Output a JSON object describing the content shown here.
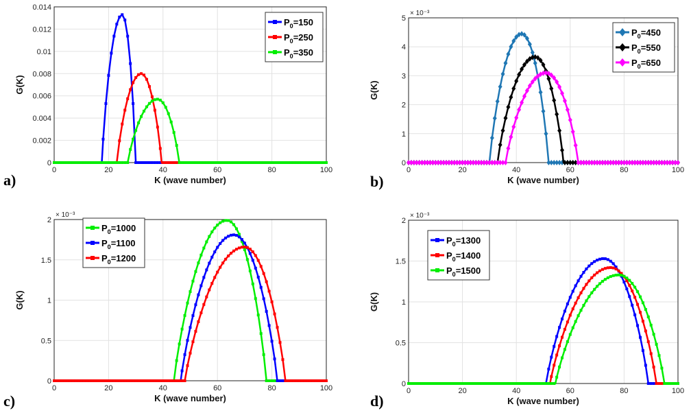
{
  "chart_data": [
    {
      "type": "line",
      "panel_label": "a)",
      "xlabel": "K (wave number)",
      "ylabel": "G(K)",
      "xlim": [
        0,
        100
      ],
      "ylim": [
        0,
        0.014
      ],
      "xticks": [
        "0",
        "20",
        "40",
        "60",
        "80",
        "100"
      ],
      "yticks": [
        "0",
        "0.002",
        "0.004",
        "0.006",
        "0.008",
        "0.01",
        "0.012",
        "0.014"
      ],
      "exponent": "",
      "legend_position": "top-right",
      "marker": "square",
      "series": [
        {
          "name": "P0=150",
          "legend_main": "P",
          "legend_sub": "0",
          "legend_value": "=150",
          "color": "#0000ff",
          "k_start": 17.5,
          "k_end": 30,
          "peak_k": 25,
          "peak": 0.0133
        },
        {
          "name": "P0=250",
          "legend_main": "P",
          "legend_sub": "0",
          "legend_value": "=250",
          "color": "#ff0000",
          "k_start": 23,
          "k_end": 39.5,
          "peak_k": 32,
          "peak": 0.008
        },
        {
          "name": "P0=350",
          "legend_main": "P",
          "legend_sub": "0",
          "legend_value": "=350",
          "color": "#00ee00",
          "k_start": 27,
          "k_end": 46,
          "peak_k": 38,
          "peak": 0.0057
        }
      ]
    },
    {
      "type": "line",
      "panel_label": "b)",
      "xlabel": "K (wave number)",
      "ylabel": "G(K)",
      "xlim": [
        0,
        100
      ],
      "ylim": [
        0,
        5
      ],
      "xticks": [
        "0",
        "20",
        "40",
        "60",
        "80",
        "100"
      ],
      "yticks": [
        "0",
        "1",
        "2",
        "3",
        "4",
        "5"
      ],
      "exponent": "× 10⁻³",
      "legend_position": "top-right",
      "marker": "diamond",
      "series": [
        {
          "name": "P0=450",
          "legend_main": "P",
          "legend_sub": "0",
          "legend_value": "=450",
          "color": "#1f77b4",
          "k_start": 30,
          "k_end": 52,
          "peak_k": 42,
          "peak": 4.45
        },
        {
          "name": "P0=550",
          "legend_main": "P",
          "legend_sub": "0",
          "legend_value": "=550",
          "color": "#000000",
          "k_start": 33,
          "k_end": 57.5,
          "peak_k": 47,
          "peak": 3.65
        },
        {
          "name": "P0=650",
          "legend_main": "P",
          "legend_sub": "0",
          "legend_value": "=650",
          "color": "#ff00ff",
          "k_start": 36,
          "k_end": 63,
          "peak_k": 51,
          "peak": 3.1
        }
      ]
    },
    {
      "type": "line",
      "panel_label": "c)",
      "xlabel": "K (wave number)",
      "ylabel": "G(K)",
      "xlim": [
        0,
        100
      ],
      "ylim": [
        0,
        2
      ],
      "xticks": [
        "0",
        "20",
        "40",
        "60",
        "80",
        "100"
      ],
      "yticks": [
        "0",
        "0.5",
        "1",
        "1.5",
        "2"
      ],
      "exponent": "× 10⁻³",
      "legend_position": "top-left",
      "marker": "square",
      "series": [
        {
          "name": "P0=1000",
          "legend_main": "P",
          "legend_sub": "0",
          "legend_value": "=1000",
          "color": "#00ee00",
          "k_start": 44,
          "k_end": 78,
          "peak_k": 63.5,
          "peak": 1.99
        },
        {
          "name": "P0=1100",
          "legend_main": "P",
          "legend_sub": "0",
          "legend_value": "=1100",
          "color": "#0000ff",
          "k_start": 46.5,
          "k_end": 82,
          "peak_k": 66,
          "peak": 1.81
        },
        {
          "name": "P0=1200",
          "legend_main": "P",
          "legend_sub": "0",
          "legend_value": "=1200",
          "color": "#ff0000",
          "k_start": 48,
          "k_end": 85,
          "peak_k": 70,
          "peak": 1.66
        }
      ]
    },
    {
      "type": "line",
      "panel_label": "d)",
      "xlabel": "K (wave number)",
      "ylabel": "G(K)",
      "xlim": [
        0,
        100
      ],
      "ylim": [
        0,
        2
      ],
      "xticks": [
        "0",
        "20",
        "40",
        "60",
        "80",
        "100"
      ],
      "yticks": [
        "0",
        "0.5",
        "1",
        "1.5",
        "2"
      ],
      "exponent": "× 10⁻³",
      "legend_position": "top-left",
      "marker": "square",
      "series": [
        {
          "name": "P0=1300",
          "legend_main": "P",
          "legend_sub": "0",
          "legend_value": "=1300",
          "color": "#0000ff",
          "k_start": 51,
          "k_end": 89,
          "peak_k": 72.5,
          "peak": 1.53
        },
        {
          "name": "P0=1400",
          "legend_main": "P",
          "legend_sub": "0",
          "legend_value": "=1400",
          "color": "#ff0000",
          "k_start": 52.5,
          "k_end": 92,
          "peak_k": 75,
          "peak": 1.42
        },
        {
          "name": "P0=1500",
          "legend_main": "P",
          "legend_sub": "0",
          "legend_value": "=1500",
          "color": "#00ee00",
          "k_start": 54.5,
          "k_end": 95,
          "peak_k": 78,
          "peak": 1.33
        }
      ]
    }
  ]
}
